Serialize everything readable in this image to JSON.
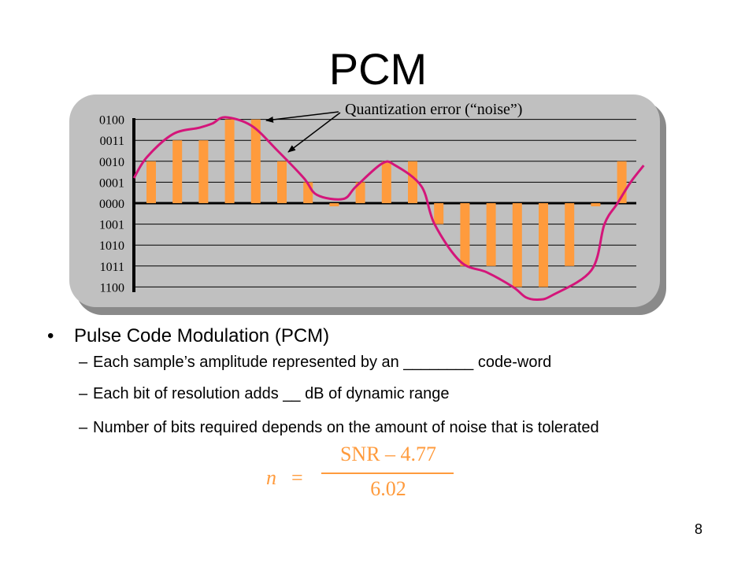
{
  "slide": {
    "title": "PCM",
    "page_number": "8"
  },
  "figure": {
    "annotation": "Quantization error (“noise”)",
    "level_labels": [
      "0100",
      "0011",
      "0010",
      "0001",
      "0000",
      "1001",
      "1010",
      "1011",
      "1100"
    ],
    "level_values": [
      4,
      3,
      2,
      1,
      0,
      -1,
      -2,
      -3,
      -4
    ],
    "sample_levels": [
      2,
      3,
      3,
      4,
      4,
      2,
      1,
      -0.15,
      1,
      2,
      2,
      -1,
      -3,
      -3,
      -4,
      -4,
      -3,
      -0.15,
      2
    ],
    "signal_curve": [
      [
        0,
        1.2
      ],
      [
        0.5,
        2.2
      ],
      [
        1.5,
        3.3
      ],
      [
        2.5,
        3.6
      ],
      [
        3.0,
        3.8
      ],
      [
        3.5,
        4.1
      ],
      [
        4.5,
        3.7
      ],
      [
        5.5,
        2.5
      ],
      [
        6.5,
        1.2
      ],
      [
        7.0,
        0.4
      ],
      [
        8.0,
        0.2
      ],
      [
        8.5,
        0.8
      ],
      [
        9.5,
        1.9
      ],
      [
        10.0,
        1.8
      ],
      [
        11.0,
        0.8
      ],
      [
        11.5,
        -1
      ],
      [
        12.5,
        -2.8
      ],
      [
        13.5,
        -3.3
      ],
      [
        14.5,
        -4.0
      ],
      [
        15.0,
        -4.5
      ],
      [
        15.5,
        -4.6
      ],
      [
        16.0,
        -4.4
      ],
      [
        17.5,
        -3.2
      ],
      [
        18.0,
        -1.0
      ],
      [
        18.5,
        0
      ],
      [
        19.0,
        1.0
      ],
      [
        19.5,
        1.8
      ]
    ],
    "bar_color": "#ff9b3d",
    "curve_color": "#d4157a",
    "panel_color": "#c0c0c0"
  },
  "bullets": {
    "main": "Pulse Code Modulation (PCM)",
    "dot": "•",
    "dash": "–",
    "sub": [
      "Each sample’s amplitude represented by an ________ code-word",
      "Each bit of resolution adds __ dB of dynamic range",
      "Number of bits required depends on the amount of noise that is tolerated"
    ]
  },
  "formula": {
    "lhs": "n",
    "equals": "=",
    "numerator": "SNR – 4.77",
    "denominator": "6.02",
    "color": "#ff9b3d"
  }
}
